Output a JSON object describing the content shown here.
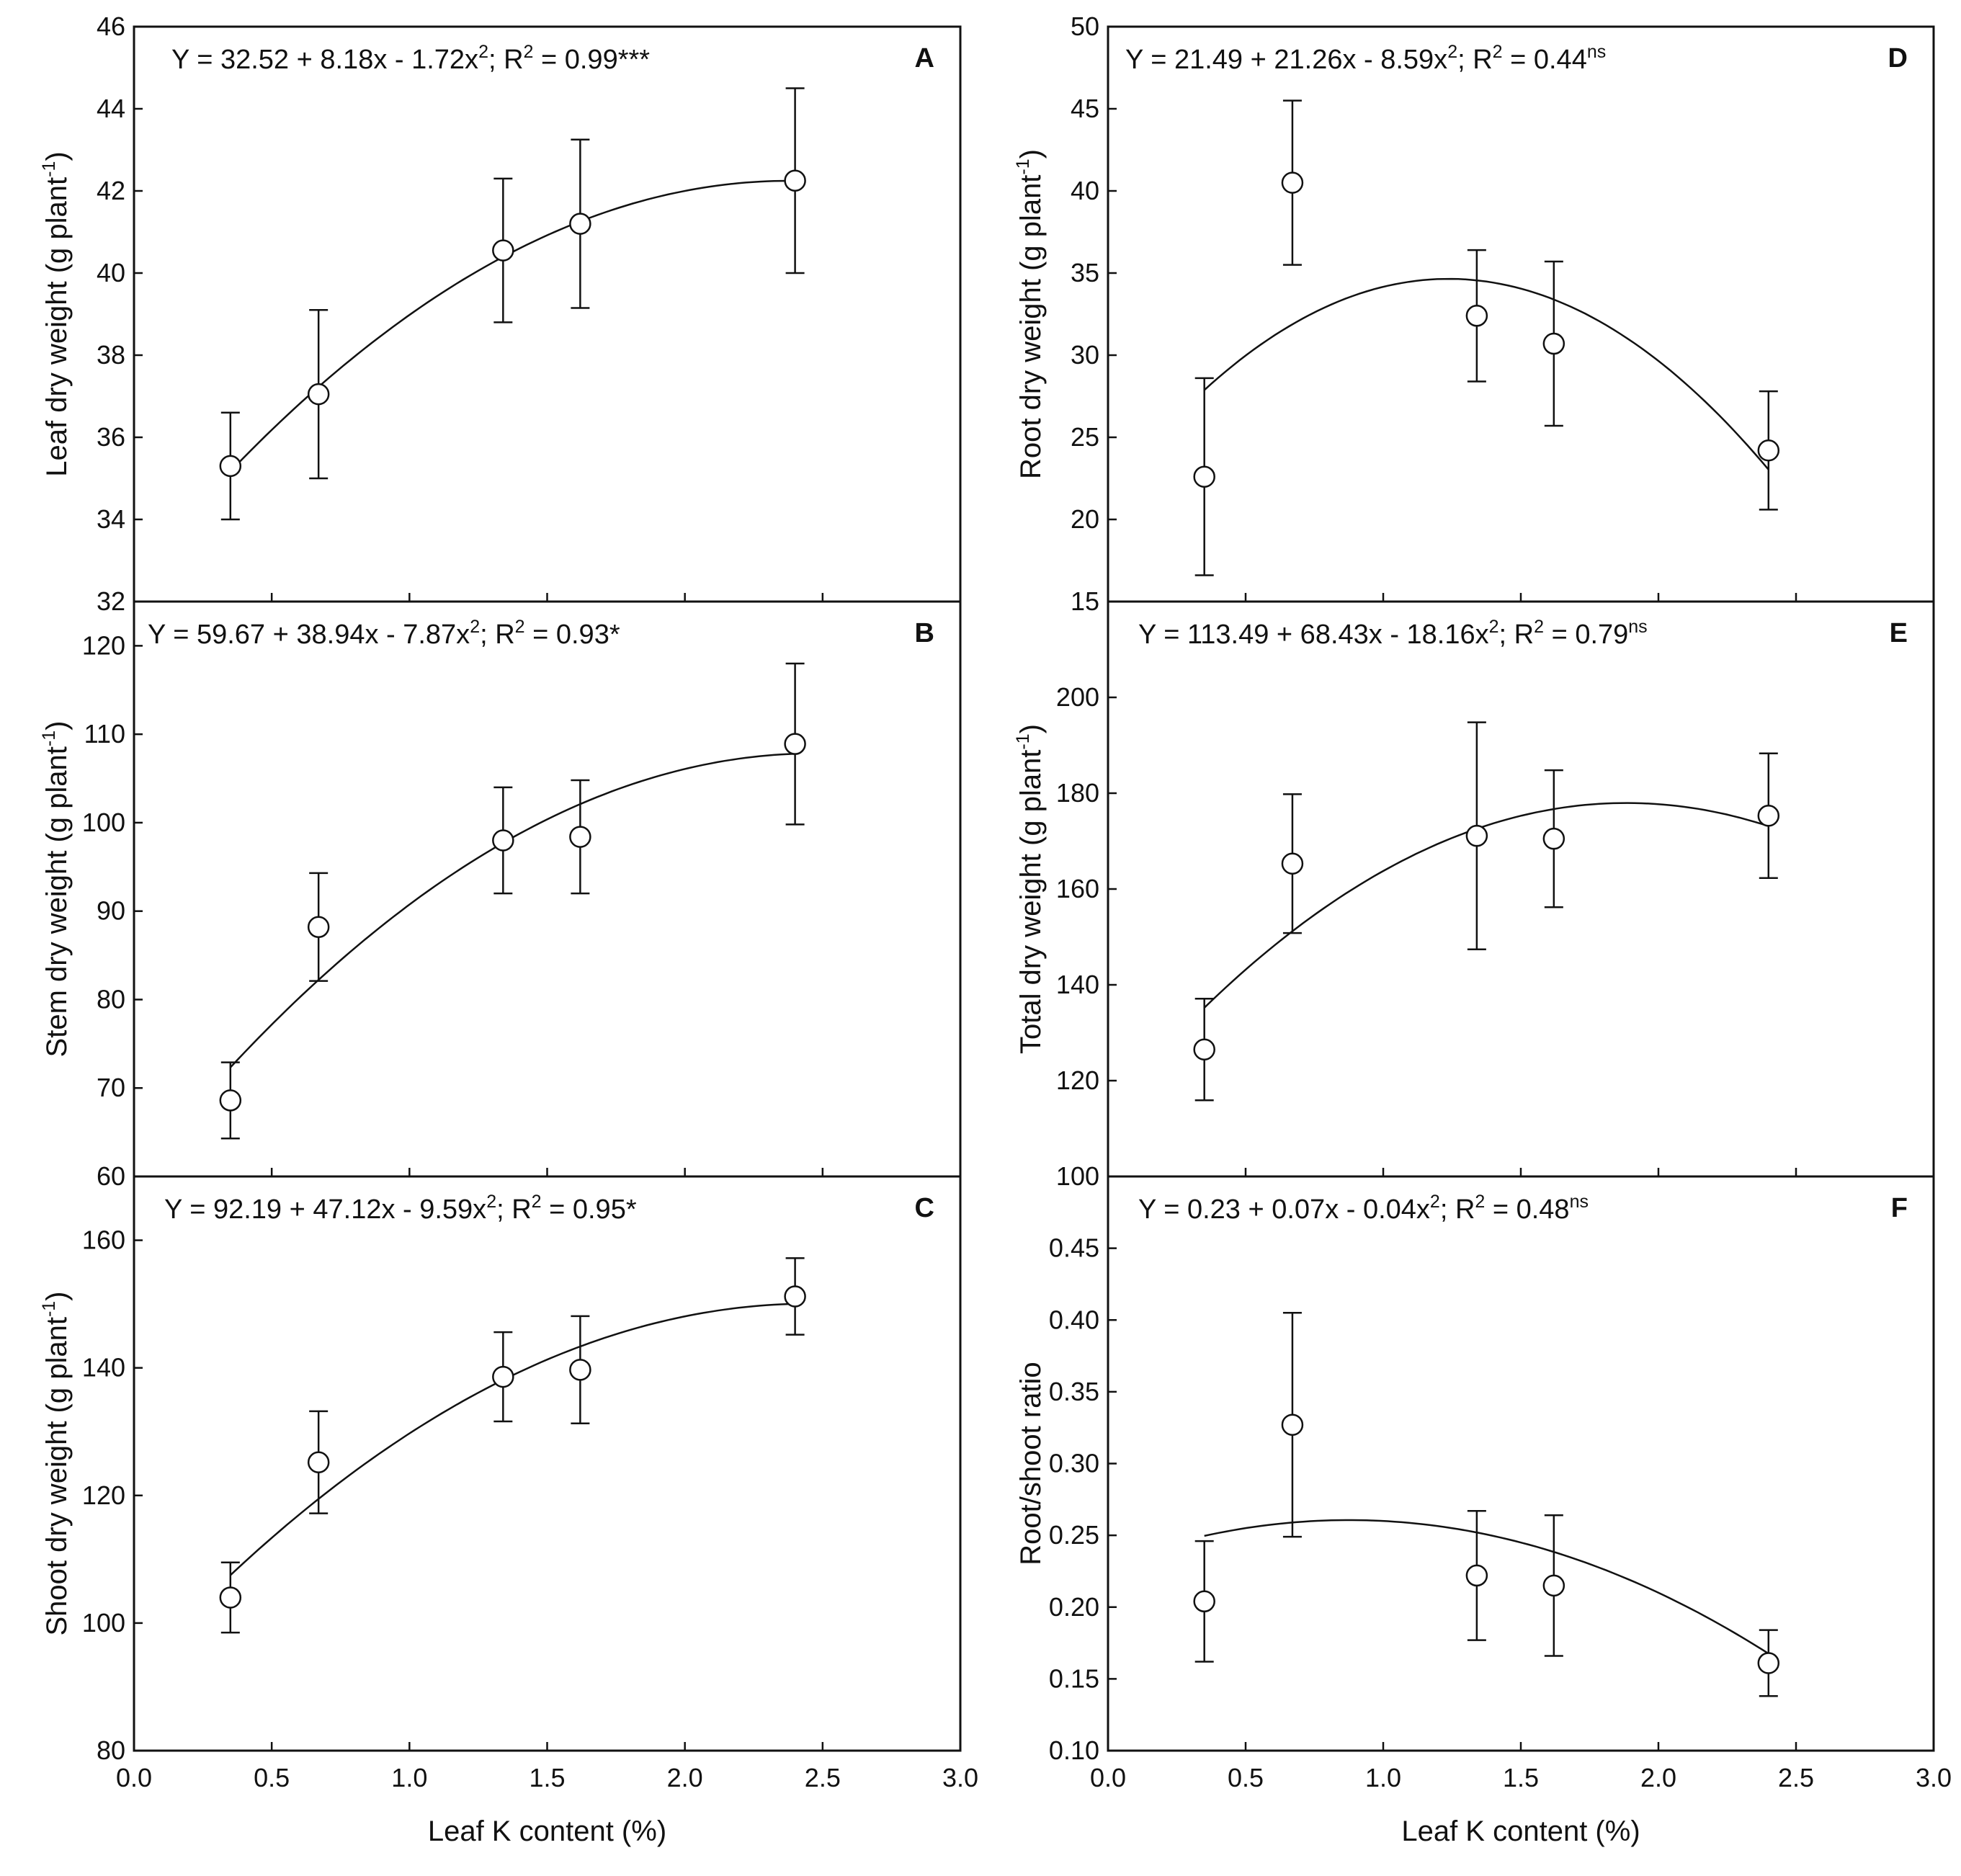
{
  "chart_data": [
    {
      "type": "scatter",
      "panel": "A",
      "xlabel": "",
      "ylabel": "Leaf dry weight (g plant",
      "ylabel_sup": "-1",
      "ylabel_end": ")",
      "xlim": [
        0.0,
        3.0
      ],
      "ylim": [
        32,
        46
      ],
      "xticks": [
        "0.0",
        "0.5",
        "1.0",
        "1.5",
        "2.0",
        "2.5",
        "3.0"
      ],
      "yticks": [
        "32",
        "34",
        "36",
        "38",
        "40",
        "42",
        "44",
        "46"
      ],
      "equation": {
        "main": "Y = 32.52 + 8.18x - 1.72x",
        "sq": "2",
        "r2": "; R",
        "r2sup": "2",
        "value": " = 0.99***",
        "sig": ""
      },
      "fit": [
        32.52,
        8.18,
        -1.72
      ],
      "points": [
        {
          "x": 0.35,
          "y": 35.3,
          "err": 1.3
        },
        {
          "x": 0.67,
          "y": 37.05,
          "err": 2.05
        },
        {
          "x": 1.34,
          "y": 40.55,
          "err": 1.75
        },
        {
          "x": 1.62,
          "y": 41.2,
          "err": 2.05
        },
        {
          "x": 2.4,
          "y": 42.25,
          "err": 2.25
        }
      ]
    },
    {
      "type": "scatter",
      "panel": "B",
      "xlabel": "",
      "ylabel": "Stem dry weight (g plant",
      "ylabel_sup": "-1",
      "ylabel_end": ")",
      "xlim": [
        0.0,
        3.0
      ],
      "ylim": [
        60,
        125
      ],
      "xticks": [
        "0.0",
        "0.5",
        "1.0",
        "1.5",
        "2.0",
        "2.5",
        "3.0"
      ],
      "yticks": [
        "60",
        "70",
        "80",
        "90",
        "100",
        "110",
        "120"
      ],
      "equation": {
        "main": "Y =  59.67 + 38.94x - 7.87x",
        "sq": "2",
        "r2": "; R",
        "r2sup": "2",
        "value": " = 0.93*",
        "sig": ""
      },
      "fit": [
        59.67,
        38.94,
        -7.87
      ],
      "points": [
        {
          "x": 0.35,
          "y": 68.6,
          "err": 4.3
        },
        {
          "x": 0.67,
          "y": 88.2,
          "err": 6.1
        },
        {
          "x": 1.34,
          "y": 98.0,
          "err": 6.0
        },
        {
          "x": 1.62,
          "y": 98.4,
          "err": 6.4
        },
        {
          "x": 2.4,
          "y": 108.9,
          "err": 9.1
        }
      ]
    },
    {
      "type": "scatter",
      "panel": "C",
      "xlabel": "Leaf K content (%)",
      "ylabel": "Shoot dry weight (g plant",
      "ylabel_sup": "-1",
      "ylabel_end": ")",
      "xlim": [
        0.0,
        3.0
      ],
      "ylim": [
        80,
        170
      ],
      "xticks": [
        "0.0",
        "0.5",
        "1.0",
        "1.5",
        "2.0",
        "2.5",
        "3.0"
      ],
      "yticks": [
        "80",
        "100",
        "120",
        "140",
        "160"
      ],
      "equation": {
        "main": "Y = 92.19 + 47.12x - 9.59x",
        "sq": "2",
        "r2": "; R",
        "r2sup": "2",
        "value": " = 0.95*",
        "sig": ""
      },
      "fit": [
        92.19,
        47.12,
        -9.59
      ],
      "points": [
        {
          "x": 0.35,
          "y": 104.0,
          "err": 5.5
        },
        {
          "x": 0.67,
          "y": 125.2,
          "err": 8.0
        },
        {
          "x": 1.34,
          "y": 138.6,
          "err": 7.0
        },
        {
          "x": 1.62,
          "y": 139.7,
          "err": 8.4
        },
        {
          "x": 2.4,
          "y": 151.2,
          "err": 6.0
        }
      ]
    },
    {
      "type": "scatter",
      "panel": "D",
      "xlabel": "",
      "ylabel": "Root dry weight (g plant",
      "ylabel_sup": "-1",
      "ylabel_end": ")",
      "xlim": [
        0.0,
        3.0
      ],
      "ylim": [
        15,
        50
      ],
      "xticks": [
        "0.0",
        "0.5",
        "1.0",
        "1.5",
        "2.0",
        "2.5",
        "3.0"
      ],
      "yticks": [
        "15",
        "20",
        "25",
        "30",
        "35",
        "40",
        "45",
        "50"
      ],
      "equation": {
        "main": "Y =  21.49 + 21.26x - 8.59x",
        "sq": "2",
        "r2": "; R",
        "r2sup": "2",
        "value": " = 0.44",
        "sig": "ns"
      },
      "fit": [
        21.49,
        21.26,
        -8.59
      ],
      "points": [
        {
          "x": 0.35,
          "y": 22.6,
          "err": 6.0
        },
        {
          "x": 0.67,
          "y": 40.5,
          "err": 5.0
        },
        {
          "x": 1.34,
          "y": 32.4,
          "err": 4.0
        },
        {
          "x": 1.62,
          "y": 30.7,
          "err": 5.0
        },
        {
          "x": 2.4,
          "y": 24.2,
          "err": 3.6
        }
      ]
    },
    {
      "type": "scatter",
      "panel": "E",
      "xlabel": "",
      "ylabel": "Total dry weight (g plant",
      "ylabel_sup": "-1",
      "ylabel_end": ")",
      "xlim": [
        0.0,
        3.0
      ],
      "ylim": [
        100,
        220
      ],
      "xticks": [
        "0.0",
        "0.5",
        "1.0",
        "1.5",
        "2.0",
        "2.5",
        "3.0"
      ],
      "yticks": [
        "100",
        "120",
        "140",
        "160",
        "180",
        "200"
      ],
      "equation": {
        "main": "Y = 113.49 + 68.43x - 18.16x",
        "sq": "2",
        "r2": "; R",
        "r2sup": "2",
        "value": " = 0.79",
        "sig": "ns"
      },
      "fit": [
        113.49,
        68.43,
        -18.16
      ],
      "points": [
        {
          "x": 0.35,
          "y": 126.5,
          "err": 10.6
        },
        {
          "x": 0.67,
          "y": 165.3,
          "err": 14.5
        },
        {
          "x": 1.34,
          "y": 171.1,
          "err": 23.7
        },
        {
          "x": 1.62,
          "y": 170.5,
          "err": 14.3
        },
        {
          "x": 2.4,
          "y": 175.3,
          "err": 13.0
        }
      ]
    },
    {
      "type": "scatter",
      "panel": "F",
      "xlabel": "Leaf K content (%)",
      "ylabel": "Root/shoot ratio",
      "ylabel_sup": "",
      "ylabel_end": "",
      "xlim": [
        0.0,
        3.0
      ],
      "ylim": [
        0.1,
        0.5
      ],
      "xticks": [
        "0.0",
        "0.5",
        "1.0",
        "1.5",
        "2.0",
        "2.5",
        "3.0"
      ],
      "yticks": [
        "0.10",
        "0.15",
        "0.20",
        "0.25",
        "0.30",
        "0.35",
        "0.40",
        "0.45"
      ],
      "equation": {
        "main": "Y = 0.23 + 0.07x - 0.04x",
        "sq": "2",
        "r2": "; R",
        "r2sup": "2",
        "value": " = 0.48",
        "sig": "ns"
      },
      "fit": [
        0.23,
        0.07,
        -0.04
      ],
      "points": [
        {
          "x": 0.35,
          "y": 0.204,
          "err": 0.042
        },
        {
          "x": 0.67,
          "y": 0.327,
          "err": 0.078
        },
        {
          "x": 1.34,
          "y": 0.222,
          "err": 0.045
        },
        {
          "x": 1.62,
          "y": 0.215,
          "err": 0.049
        },
        {
          "x": 2.4,
          "y": 0.161,
          "err": 0.023
        }
      ]
    }
  ]
}
